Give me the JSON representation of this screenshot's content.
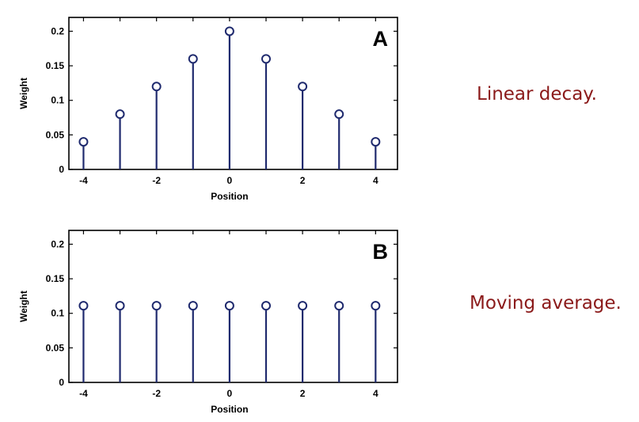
{
  "colors": {
    "stem": "#1f2a6e",
    "axis": "#000000",
    "caption": "#8b1a1a"
  },
  "captions": [
    "Linear decay.",
    "Moving average."
  ],
  "chart_data": [
    {
      "type": "stem",
      "panel_label": "A",
      "x": [
        -4,
        -3,
        -2,
        -1,
        0,
        1,
        2,
        3,
        4
      ],
      "y": [
        0.04,
        0.08,
        0.12,
        0.16,
        0.2,
        0.16,
        0.12,
        0.08,
        0.04
      ],
      "xlabel": "Position",
      "ylabel": "Weight",
      "xlim": [
        -4.4,
        4.6
      ],
      "ylim": [
        0,
        0.22
      ],
      "xticks": [
        "-4",
        "-2",
        "0",
        "2",
        "4"
      ],
      "xtick_values": [
        -4,
        -2,
        0,
        2,
        4
      ],
      "yticks": [
        "0",
        "0.05",
        "0.1",
        "0.15",
        "0.2"
      ],
      "ytick_values": [
        0,
        0.05,
        0.1,
        0.15,
        0.2
      ],
      "grid": false
    },
    {
      "type": "stem",
      "panel_label": "B",
      "x": [
        -4,
        -3,
        -2,
        -1,
        0,
        1,
        2,
        3,
        4
      ],
      "y": [
        0.111,
        0.111,
        0.111,
        0.111,
        0.111,
        0.111,
        0.111,
        0.111,
        0.111
      ],
      "xlabel": "Position",
      "ylabel": "Weight",
      "xlim": [
        -4.4,
        4.6
      ],
      "ylim": [
        0,
        0.22
      ],
      "xticks": [
        "-4",
        "-2",
        "0",
        "2",
        "4"
      ],
      "xtick_values": [
        -4,
        -2,
        0,
        2,
        4
      ],
      "yticks": [
        "0",
        "0.05",
        "0.1",
        "0.15",
        "0.2"
      ],
      "ytick_values": [
        0,
        0.05,
        0.1,
        0.15,
        0.2
      ],
      "grid": false
    }
  ]
}
